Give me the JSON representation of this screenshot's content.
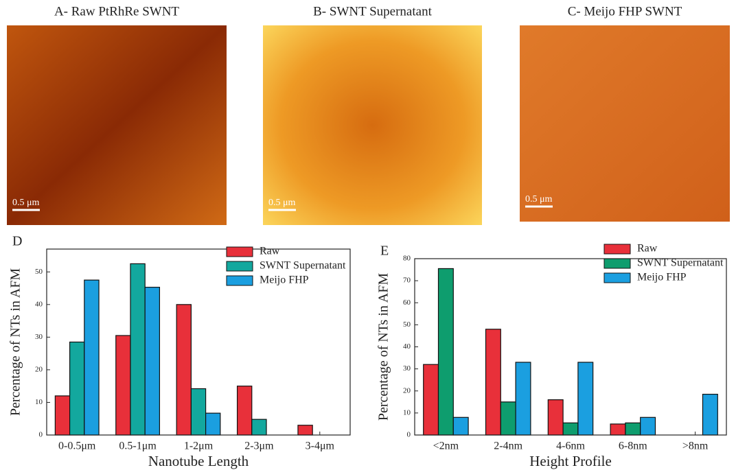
{
  "images": [
    {
      "title": "A- Raw PtRhRe SWNT",
      "scale_label": "0.5 μm"
    },
    {
      "title": "B- SWNT Supernatant",
      "scale_label": "0.5 μm"
    },
    {
      "title": "C- Meijo FHP SWNT",
      "scale_label": "0.5 μm"
    }
  ],
  "chart_data": [
    {
      "type": "bar",
      "panel": "D",
      "x_label": "Nanotube Length",
      "y_label": "Percentage of NTs in AFM",
      "categories": [
        "0-0.5μm",
        "0.5-1μm",
        "1-2μm",
        "2-3μm",
        "3-4μm"
      ],
      "series": [
        {
          "name": "Raw",
          "color": "#e8303a",
          "values": [
            12,
            30.5,
            40,
            15,
            3
          ]
        },
        {
          "name": "SWNT Supernatant",
          "color": "#13a89e",
          "values": [
            28.5,
            52.5,
            14.2,
            4.8,
            null
          ]
        },
        {
          "name": "Meijo FHP",
          "color": "#1b9fe0",
          "values": [
            47.5,
            45.3,
            6.7,
            null,
            null
          ]
        }
      ],
      "ylim": [
        0,
        57
      ],
      "yticks": [
        0,
        10,
        20,
        30,
        40,
        50
      ]
    },
    {
      "type": "bar",
      "panel": "E",
      "x_label": "Height Profile",
      "y_label": "Percentage of NTs in AFM",
      "categories": [
        "<2nm",
        "2-4nm",
        "4-6nm",
        "6-8nm",
        ">8nm"
      ],
      "series": [
        {
          "name": "Raw",
          "color": "#e8303a",
          "values": [
            32,
            48,
            16,
            5,
            0
          ]
        },
        {
          "name": "SWNT Supernatant",
          "color": "#0e9d6e",
          "values": [
            75.5,
            15,
            5.5,
            5.5,
            0
          ]
        },
        {
          "name": "Meijo FHP",
          "color": "#1b9fe0",
          "values": [
            8,
            33,
            33,
            8,
            18.5
          ]
        }
      ],
      "ylim": [
        0,
        80
      ],
      "yticks": [
        0,
        10,
        20,
        30,
        40,
        50,
        60,
        70,
        80
      ]
    }
  ]
}
